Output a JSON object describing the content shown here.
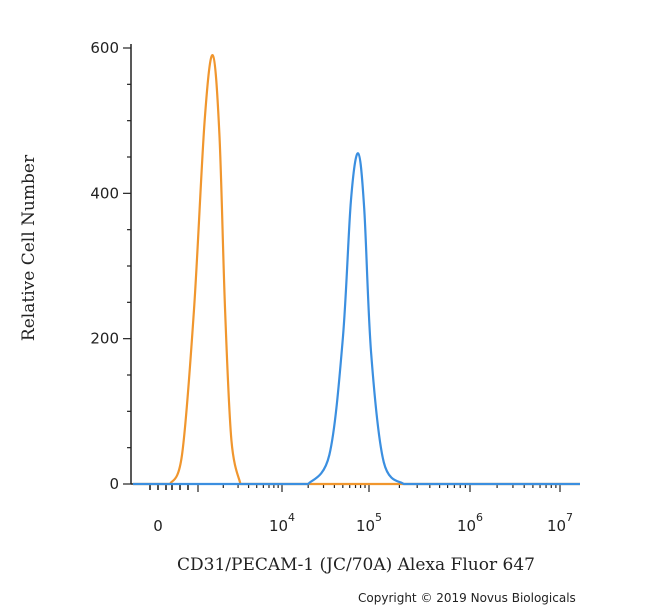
{
  "chart_data": {
    "type": "line",
    "title": "",
    "xlabel": "CD31/PECAM-1 (JC/70A) Alexa Fluor 647",
    "ylabel": "Relative Cell Number",
    "x_scale": "biexponential",
    "x_ticks": [
      {
        "base": "0",
        "exp": ""
      },
      {
        "base": "10",
        "exp": "4"
      },
      {
        "base": "10",
        "exp": "5"
      },
      {
        "base": "10",
        "exp": "6"
      },
      {
        "base": "10",
        "exp": "7"
      }
    ],
    "ylim": [
      0,
      600
    ],
    "y_ticks": [
      "0",
      "200",
      "400",
      "600"
    ],
    "grid": false,
    "legend": "none",
    "series": [
      {
        "color": "#f0962e",
        "peak_x": 1500,
        "peak_y": 590,
        "x": [
          300,
          600,
          900,
          1200,
          1500,
          1800,
          2100,
          2500,
          3200
        ],
        "y": [
          0,
          40,
          240,
          500,
          590,
          480,
          240,
          60,
          0
        ]
      },
      {
        "color": "#3b8fe0",
        "peak_x": 75000,
        "peak_y": 455,
        "x": [
          20000,
          35000,
          50000,
          62000,
          75000,
          88000,
          105000,
          140000,
          220000
        ],
        "y": [
          0,
          40,
          200,
          390,
          455,
          380,
          180,
          30,
          0
        ]
      }
    ]
  },
  "footer": {
    "copyright": "Copyright © 2019 Novus Biologicals"
  }
}
